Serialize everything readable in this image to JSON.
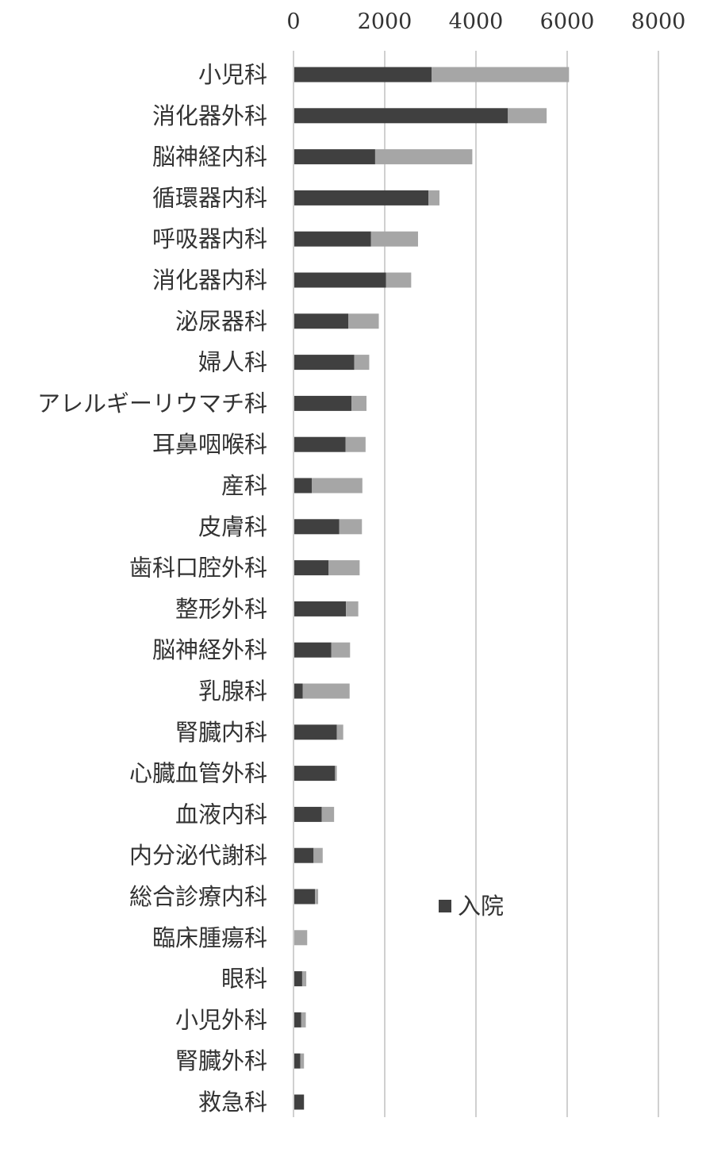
{
  "chart_data": {
    "type": "bar",
    "orientation": "horizontal",
    "stacked": true,
    "title": "",
    "xlabel": "",
    "ylabel": "",
    "xlim": [
      0,
      8000
    ],
    "xticks": [
      0,
      2000,
      4000,
      6000,
      8000
    ],
    "xtick_labels": [
      "0",
      "2000",
      "4000",
      "6000",
      "8000"
    ],
    "grid": true,
    "legend_position": "lower-center",
    "categories": [
      "小児科",
      "消化器外科",
      "脳神経内科",
      "循環器内科",
      "呼吸器内科",
      "消化器内科",
      "泌尿器科",
      "婦人科",
      "アレルギーリウマチ科",
      "耳鼻咽喉科",
      "産科",
      "皮膚科",
      "歯科口腔外科",
      "整形外科",
      "脳神経外科",
      "乳腺科",
      "腎臓内科",
      "心臓血管外科",
      "血液内科",
      "内分泌代謝科",
      "総合診療内科",
      "臨床腫瘍科",
      "眼科",
      "小児外科",
      "腎臓外科",
      "救急科"
    ],
    "series": [
      {
        "name": "入院",
        "color": "#404040",
        "values": [
          3030,
          4700,
          1790,
          2960,
          1700,
          2030,
          1200,
          1330,
          1270,
          1140,
          400,
          1000,
          770,
          1150,
          830,
          200,
          950,
          910,
          620,
          440,
          470,
          0,
          190,
          170,
          150,
          230
        ]
      },
      {
        "name": "",
        "color": "#a6a6a6",
        "values": [
          3010,
          850,
          2130,
          240,
          1030,
          550,
          670,
          330,
          330,
          440,
          1110,
          500,
          680,
          270,
          410,
          1030,
          140,
          40,
          270,
          200,
          70,
          300,
          90,
          100,
          80,
          0
        ]
      }
    ]
  }
}
